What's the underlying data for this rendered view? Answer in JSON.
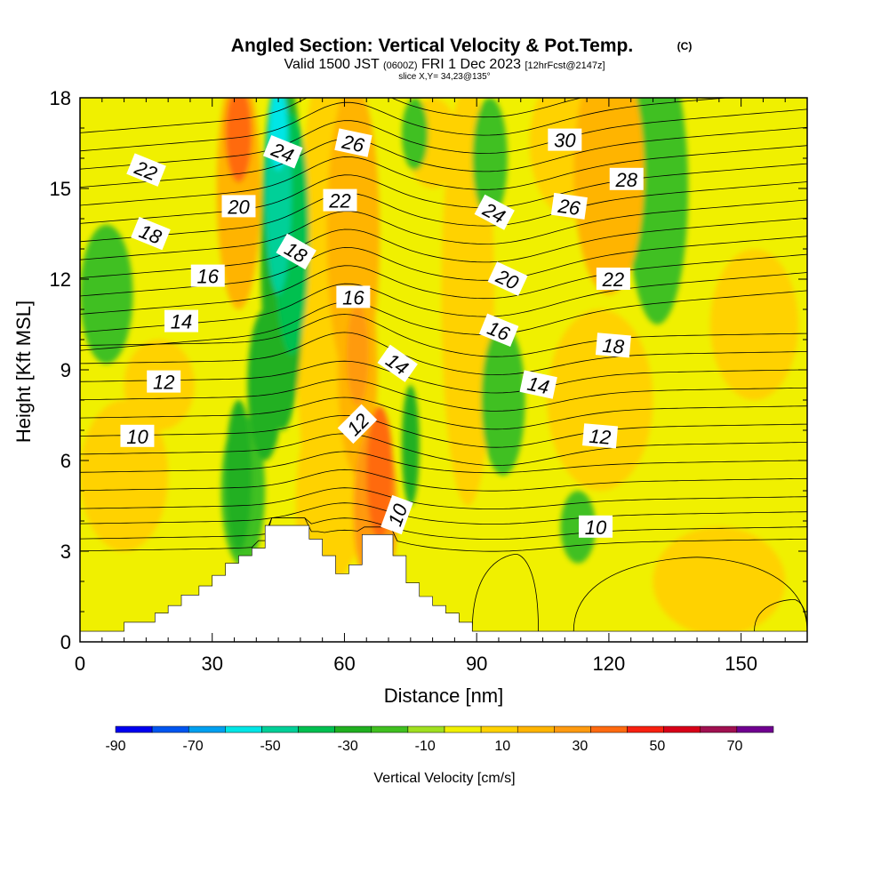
{
  "chart_data": {
    "type": "heatmap",
    "title": "Angled Section: Vertical Velocity & Pot.Temp.",
    "copyright": "(C)",
    "subtitle": {
      "valid_prefix": "Valid 1500 JST",
      "utc": "(0600Z)",
      "date": "FRI 1 Dec 2023",
      "run": "[12hrFcst@2147z]"
    },
    "slice_label": "slice X,Y= 34,23@135°",
    "xlabel": "Distance [nm]",
    "ylabel": "Height [Kft MSL]",
    "xlim": [
      0,
      165
    ],
    "ylim": [
      0,
      18
    ],
    "x_ticks": [
      "0",
      "30",
      "60",
      "90",
      "120",
      "150"
    ],
    "y_ticks": [
      "0",
      "3",
      "6",
      "9",
      "12",
      "15",
      "18"
    ],
    "colorbar": {
      "label": "Vertical Velocity [cm/s]",
      "tick_labels": [
        "-90",
        "-70",
        "-50",
        "-30",
        "-10",
        "10",
        "30",
        "50",
        "70"
      ],
      "boundaries": [
        -90,
        -80,
        -70,
        -60,
        -50,
        -40,
        -30,
        -20,
        -10,
        0,
        10,
        20,
        30,
        40,
        50,
        60,
        70,
        80
      ],
      "colors": [
        "#0000f0",
        "#0055f0",
        "#00a0f0",
        "#00e6e6",
        "#00d098",
        "#00c050",
        "#20b020",
        "#40c020",
        "#a0e020",
        "#f0f000",
        "#ffd200",
        "#ffb400",
        "#ff9a10",
        "#ff6a10",
        "#f82010",
        "#d80018",
        "#a01050",
        "#700090"
      ]
    },
    "terrain_profile": {
      "x": [
        0,
        10,
        10,
        17,
        17,
        20,
        20,
        23,
        23,
        27,
        27,
        30,
        30,
        33,
        33,
        36,
        36,
        39,
        39,
        42,
        42,
        52,
        52,
        55,
        55,
        58,
        58,
        61,
        61,
        64,
        64,
        71,
        71,
        74,
        74,
        77,
        77,
        80,
        80,
        83,
        83,
        86,
        86,
        89,
        89,
        92,
        92,
        165
      ],
      "height": [
        0.35,
        0.35,
        0.65,
        0.65,
        0.95,
        0.95,
        1.2,
        1.2,
        1.55,
        1.55,
        1.85,
        1.85,
        2.2,
        2.2,
        2.6,
        2.6,
        2.85,
        2.85,
        3.1,
        3.1,
        3.85,
        3.85,
        3.4,
        3.4,
        2.85,
        2.85,
        2.25,
        2.25,
        2.55,
        2.55,
        3.55,
        3.55,
        2.85,
        2.85,
        1.95,
        1.95,
        1.5,
        1.5,
        1.2,
        1.2,
        0.95,
        0.95,
        0.65,
        0.65,
        0.35,
        0.35,
        0.35,
        0.35
      ]
    },
    "velocity_features": [
      {
        "x": 68,
        "y": 5.6,
        "rx": 3,
        "ry": 2.2,
        "value": 45
      },
      {
        "x": 67,
        "y": 4.4,
        "rx": 5,
        "ry": 2.8,
        "value": 35
      },
      {
        "x": 63,
        "y": 9.5,
        "rx": 2.5,
        "ry": 1.7,
        "value": 35
      },
      {
        "x": 63,
        "y": 9.0,
        "rx": 4.5,
        "ry": 3.5,
        "value": 22
      },
      {
        "x": 62,
        "y": 13.5,
        "rx": 6,
        "ry": 5,
        "value": 22
      },
      {
        "x": 60,
        "y": 6.5,
        "rx": 6,
        "ry": 4,
        "value": 18
      },
      {
        "x": 36,
        "y": 16.8,
        "rx": 3,
        "ry": 1.6,
        "value": 45
      },
      {
        "x": 36,
        "y": 15.0,
        "rx": 5,
        "ry": 4,
        "value": 25
      },
      {
        "x": 58,
        "y": 11.0,
        "rx": 9,
        "ry": 9,
        "value": 12
      },
      {
        "x": 52,
        "y": 4.5,
        "rx": 3,
        "ry": 2.5,
        "value": 18
      },
      {
        "x": 80,
        "y": 16.5,
        "rx": 6,
        "ry": 1.5,
        "value": 15
      },
      {
        "x": 120,
        "y": 15.5,
        "rx": 8,
        "ry": 4,
        "value": 20
      },
      {
        "x": 112,
        "y": 16.5,
        "rx": 10,
        "ry": 2.5,
        "value": 12
      },
      {
        "x": 88,
        "y": 11.5,
        "rx": 6,
        "ry": 7,
        "value": 12
      },
      {
        "x": 10,
        "y": 5.5,
        "rx": 10,
        "ry": 2.5,
        "value": 12
      },
      {
        "x": 118,
        "y": 8.0,
        "rx": 12,
        "ry": 3,
        "value": 12
      },
      {
        "x": 145,
        "y": 2.0,
        "rx": 15,
        "ry": 1.8,
        "value": 12
      },
      {
        "x": 153,
        "y": 10.5,
        "rx": 10,
        "ry": 2.5,
        "value": 11
      },
      {
        "x": 18,
        "y": 8.5,
        "rx": 8,
        "ry": 1.5,
        "value": 11
      },
      {
        "x": 48,
        "y": 13.5,
        "rx": 4,
        "ry": 4,
        "value": -40
      },
      {
        "x": 45,
        "y": 15.0,
        "rx": 3,
        "ry": 3.5,
        "value": -50
      },
      {
        "x": 45,
        "y": 17.0,
        "rx": 2,
        "ry": 1.4,
        "value": -60
      },
      {
        "x": 46,
        "y": 13.0,
        "rx": 5,
        "ry": 6,
        "value": -30
      },
      {
        "x": 42,
        "y": 8.5,
        "rx": 4,
        "ry": 2.5,
        "value": -25
      },
      {
        "x": 36,
        "y": 5.5,
        "rx": 3,
        "ry": 2.5,
        "value": -30
      },
      {
        "x": 37,
        "y": 5.0,
        "rx": 5,
        "ry": 2.5,
        "value": -18
      },
      {
        "x": 131,
        "y": 15.0,
        "rx": 7,
        "ry": 4.5,
        "value": -15
      },
      {
        "x": 6,
        "y": 11.5,
        "rx": 6,
        "ry": 2.3,
        "value": -15
      },
      {
        "x": 96,
        "y": 8.0,
        "rx": 5,
        "ry": 2.5,
        "value": -15
      },
      {
        "x": 93,
        "y": 16.0,
        "rx": 4,
        "ry": 2,
        "value": -15
      },
      {
        "x": 76,
        "y": 16.8,
        "rx": 3,
        "ry": 1.2,
        "value": -15
      },
      {
        "x": 75,
        "y": 6.5,
        "rx": 2,
        "ry": 2,
        "value": -30
      },
      {
        "x": 113,
        "y": 3.8,
        "rx": 4,
        "ry": 1.2,
        "value": -15
      }
    ],
    "theta_isolines": [
      {
        "base": 3.2,
        "flat": true
      },
      {
        "base": 3.6
      },
      {
        "base": 4.1
      },
      {
        "base": 4.6
      },
      {
        "base": 5.2
      },
      {
        "base": 5.8
      },
      {
        "base": 6.4
      },
      {
        "base": 7.0
      },
      {
        "base": 7.6
      },
      {
        "base": 8.2
      },
      {
        "base": 8.8
      },
      {
        "base": 9.4
      },
      {
        "base": 10.0
      },
      {
        "base": 10.6
      },
      {
        "base": 11.2
      },
      {
        "base": 11.8
      },
      {
        "base": 12.4
      },
      {
        "base": 13.0
      },
      {
        "base": 13.6
      },
      {
        "base": 14.2
      },
      {
        "base": 14.8
      },
      {
        "base": 15.4
      },
      {
        "base": 16.0
      },
      {
        "base": 16.6
      },
      {
        "base": 17.2
      },
      {
        "base": 17.8
      }
    ],
    "lower_closed_isolines": [
      {
        "cx": 99,
        "top": 2.9,
        "x0": 89,
        "x1": 104
      },
      {
        "cx": 140,
        "top": 2.8,
        "x0": 112,
        "x1": 165
      },
      {
        "cx": 162,
        "top": 1.4,
        "x0": 153,
        "x1": 165
      }
    ],
    "contour_labels": [
      {
        "text": "22",
        "x": 15,
        "y": 15.6,
        "angle": 22
      },
      {
        "text": "18",
        "x": 16,
        "y": 13.5,
        "angle": 22
      },
      {
        "text": "16",
        "x": 29,
        "y": 12.1,
        "angle": 0
      },
      {
        "text": "14",
        "x": 23,
        "y": 10.6,
        "angle": 0
      },
      {
        "text": "12",
        "x": 19,
        "y": 8.6,
        "angle": 0
      },
      {
        "text": "10",
        "x": 13,
        "y": 6.8,
        "angle": 0
      },
      {
        "text": "20",
        "x": 36,
        "y": 14.4,
        "angle": 0
      },
      {
        "text": "24",
        "x": 46,
        "y": 16.2,
        "angle": 22
      },
      {
        "text": "26",
        "x": 62,
        "y": 16.5,
        "angle": 12
      },
      {
        "text": "22",
        "x": 59,
        "y": 14.6,
        "angle": 0
      },
      {
        "text": "18",
        "x": 49,
        "y": 12.9,
        "angle": 30
      },
      {
        "text": "16",
        "x": 62,
        "y": 11.4,
        "angle": 0
      },
      {
        "text": "14",
        "x": 72,
        "y": 9.2,
        "angle": 35
      },
      {
        "text": "12",
        "x": 63,
        "y": 7.2,
        "angle": -45
      },
      {
        "text": "10",
        "x": 72,
        "y": 4.2,
        "angle": -70
      },
      {
        "text": "30",
        "x": 110,
        "y": 16.6,
        "angle": 0
      },
      {
        "text": "28",
        "x": 124,
        "y": 15.3,
        "angle": 0
      },
      {
        "text": "26",
        "x": 111,
        "y": 14.4,
        "angle": 8
      },
      {
        "text": "24",
        "x": 94,
        "y": 14.2,
        "angle": 28
      },
      {
        "text": "20",
        "x": 97,
        "y": 12.0,
        "angle": 25
      },
      {
        "text": "22",
        "x": 121,
        "y": 12.0,
        "angle": 0
      },
      {
        "text": "16",
        "x": 95,
        "y": 10.3,
        "angle": 22
      },
      {
        "text": "18",
        "x": 121,
        "y": 9.8,
        "angle": 5
      },
      {
        "text": "14",
        "x": 104,
        "y": 8.5,
        "angle": 12
      },
      {
        "text": "12",
        "x": 118,
        "y": 6.8,
        "angle": 5
      },
      {
        "text": "10",
        "x": 117,
        "y": 3.8,
        "angle": 0
      }
    ]
  }
}
